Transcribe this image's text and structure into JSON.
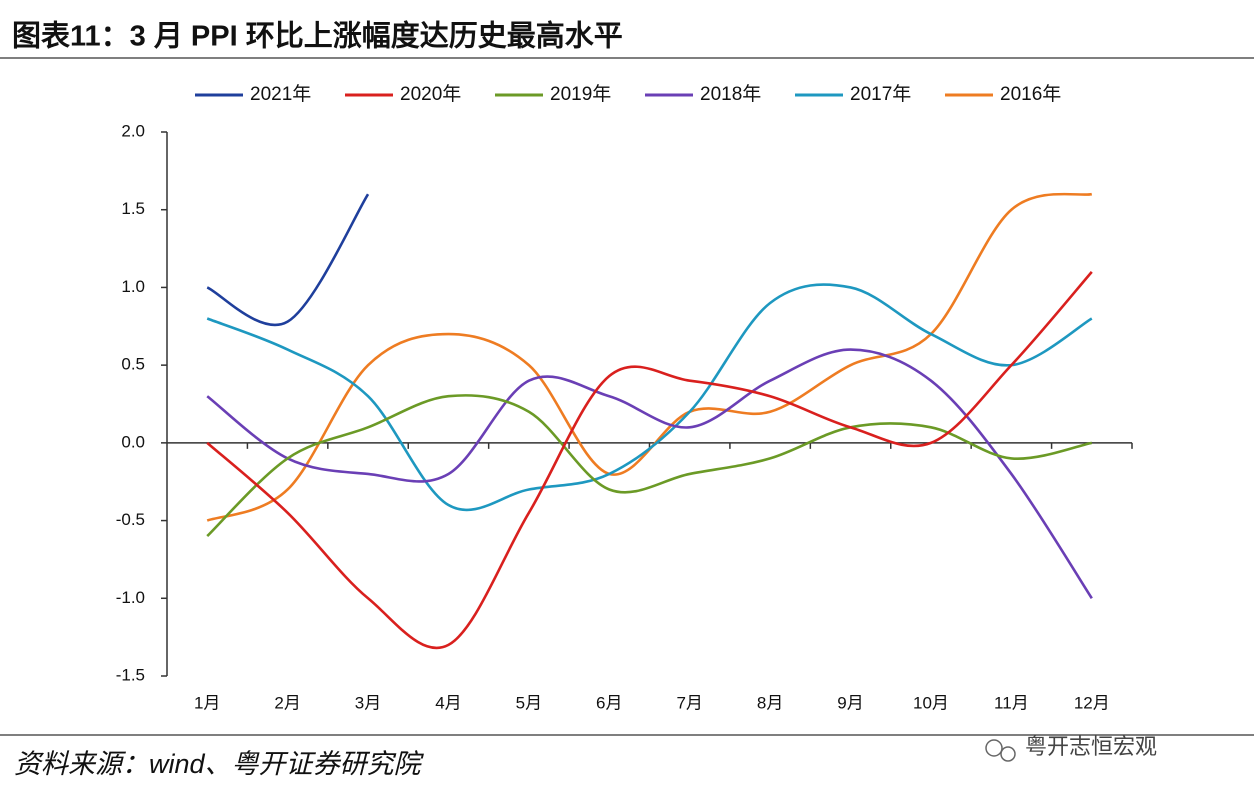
{
  "chart_data": {
    "type": "line",
    "title": "图表11：3 月 PPI 环比上涨幅度达历史最高水平",
    "source": "资料来源：wind、粤开证券研究院",
    "watermark": "粤开志恒宏观",
    "categories": [
      "1月",
      "2月",
      "3月",
      "4月",
      "5月",
      "6月",
      "7月",
      "8月",
      "9月",
      "10月",
      "11月",
      "12月"
    ],
    "series": [
      {
        "name": "2021年",
        "color": "#1f3f9c",
        "values": [
          1.0,
          0.78,
          1.6,
          null,
          null,
          null,
          null,
          null,
          null,
          null,
          null,
          null
        ]
      },
      {
        "name": "2020年",
        "color": "#d9201e",
        "values": [
          0.0,
          -0.45,
          -1.0,
          -1.3,
          -0.45,
          0.43,
          0.4,
          0.3,
          0.1,
          0.0,
          0.5,
          1.1
        ]
      },
      {
        "name": "2019年",
        "color": "#6b9a26",
        "values": [
          -0.6,
          -0.1,
          0.1,
          0.3,
          0.2,
          -0.3,
          -0.2,
          -0.1,
          0.1,
          0.1,
          -0.1,
          0.0
        ]
      },
      {
        "name": "2018年",
        "color": "#6a3fb5",
        "values": [
          0.3,
          -0.1,
          -0.2,
          -0.2,
          0.4,
          0.3,
          0.1,
          0.4,
          0.6,
          0.4,
          -0.2,
          -1.0
        ]
      },
      {
        "name": "2017年",
        "color": "#1e98c0",
        "values": [
          0.8,
          0.6,
          0.3,
          -0.4,
          -0.3,
          -0.2,
          0.2,
          0.9,
          1.0,
          0.7,
          0.5,
          0.8
        ]
      },
      {
        "name": "2016年",
        "color": "#ee7c22",
        "values": [
          -0.5,
          -0.3,
          0.5,
          0.7,
          0.5,
          -0.2,
          0.2,
          0.2,
          0.5,
          0.7,
          1.5,
          1.6
        ]
      }
    ],
    "ylim": [
      -1.5,
      2.0
    ],
    "yticks": [
      {
        "value": -1.5,
        "label": "-1.5"
      },
      {
        "value": -1,
        "label": "-1.0"
      },
      -0.5,
      {
        "value": 0,
        "label": "0.0"
      },
      0.5,
      {
        "value": 1,
        "label": "1.0"
      },
      1.5,
      {
        "value": 2,
        "label": "2.0"
      }
    ]
  }
}
